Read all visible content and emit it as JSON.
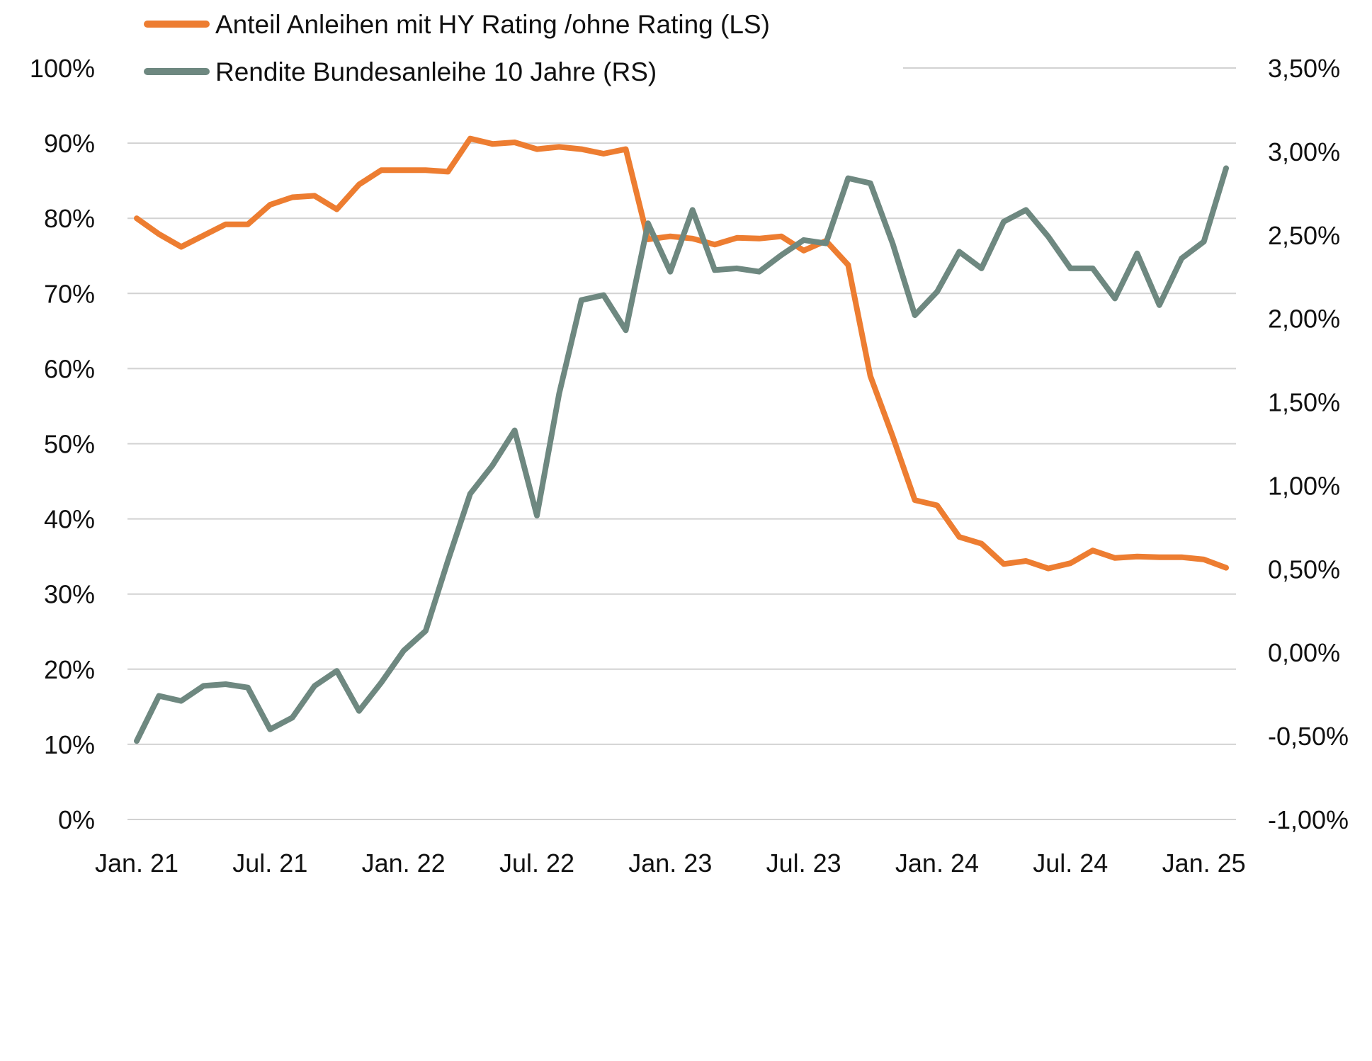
{
  "chart_data": {
    "type": "line",
    "left_axis": {
      "ylim": [
        0,
        100
      ],
      "ticks": [
        0,
        10,
        20,
        30,
        40,
        50,
        60,
        70,
        80,
        90,
        100
      ],
      "tick_labels": [
        "0%",
        "10%",
        "20%",
        "30%",
        "40%",
        "50%",
        "60%",
        "70%",
        "80%",
        "90%",
        "100%"
      ]
    },
    "right_axis": {
      "ylim": [
        -1.0,
        3.5
      ],
      "ticks": [
        -1.0,
        -0.5,
        0.0,
        0.5,
        1.0,
        1.5,
        2.0,
        2.5,
        3.0,
        3.5
      ],
      "tick_labels": [
        "-1,00%",
        "-0,50%",
        "0,00%",
        "0,50%",
        "1,00%",
        "1,50%",
        "2,00%",
        "2,50%",
        "3,00%",
        "3,50%"
      ]
    },
    "x_axis": {
      "categories": [
        "Jan. 21",
        "Feb. 21",
        "Mär. 21",
        "Apr. 21",
        "Mai 21",
        "Jun. 21",
        "Jul. 21",
        "Aug. 21",
        "Sep. 21",
        "Okt. 21",
        "Nov. 21",
        "Dez. 21",
        "Jan. 22",
        "Feb. 22",
        "Mär. 22",
        "Apr. 22",
        "Mai 22",
        "Jun. 22",
        "Jul. 22",
        "Aug. 22",
        "Sep. 22",
        "Okt. 22",
        "Nov. 22",
        "Dez. 22",
        "Jan. 23",
        "Feb. 23",
        "Mär. 23",
        "Apr. 23",
        "Mai 23",
        "Jun. 23",
        "Jul. 23",
        "Aug. 23",
        "Sep. 23",
        "Okt. 23",
        "Nov. 23",
        "Dez. 23",
        "Jan. 24",
        "Feb. 24",
        "Mär. 24",
        "Apr. 24",
        "Mai 24",
        "Jun. 24",
        "Jul. 24",
        "Aug. 24",
        "Sep. 24",
        "Okt. 24",
        "Nov. 24",
        "Dez. 24",
        "Jan. 25",
        "Feb. 25"
      ],
      "tick_labels": [
        "Jan. 21",
        "Jul. 21",
        "Jan. 22",
        "Jul. 22",
        "Jan. 23",
        "Jul. 23",
        "Jan. 24",
        "Jul. 24",
        "Jan. 25"
      ],
      "tick_categories": [
        "Jan. 21",
        "Jul. 21",
        "Jan. 22",
        "Jul. 22",
        "Jan. 23",
        "Jul. 23",
        "Jan. 24",
        "Jul. 24",
        "Jan. 25"
      ]
    },
    "series": [
      {
        "name": "Anteil Anleihen mit HY Rating /ohne Rating (LS)",
        "axis": "left",
        "color": "#ED7D31",
        "values": [
          80.0,
          77.9,
          76.2,
          77.7,
          79.2,
          79.2,
          81.8,
          82.8,
          83.0,
          81.2,
          84.5,
          86.4,
          86.4,
          86.4,
          86.2,
          90.6,
          89.9,
          90.1,
          89.2,
          89.5,
          89.2,
          88.6,
          89.2,
          77.2,
          77.6,
          77.3,
          76.5,
          77.4,
          77.3,
          77.6,
          75.7,
          77.0,
          73.8,
          59.0,
          51.0,
          42.5,
          41.8,
          37.6,
          36.7,
          34.0,
          34.4,
          33.4,
          34.1,
          35.8,
          34.8,
          35.0,
          34.9,
          34.9,
          34.6,
          33.5
        ]
      },
      {
        "name": "Rendite Bundesanleihe 10 Jahre (RS)",
        "axis": "right",
        "color": "#6E8880",
        "values": [
          -0.53,
          -0.26,
          -0.29,
          -0.2,
          -0.19,
          -0.21,
          -0.46,
          -0.39,
          -0.2,
          -0.11,
          -0.35,
          -0.18,
          0.01,
          0.13,
          0.55,
          0.95,
          1.12,
          1.33,
          0.82,
          1.55,
          2.11,
          2.14,
          1.93,
          2.57,
          2.28,
          2.65,
          2.29,
          2.3,
          2.28,
          2.38,
          2.47,
          2.45,
          2.84,
          2.81,
          2.45,
          2.02,
          2.16,
          2.4,
          2.3,
          2.58,
          2.65,
          2.49,
          2.3,
          2.3,
          2.12,
          2.39,
          2.08,
          2.36,
          2.46,
          2.9
        ]
      }
    ],
    "legend": {
      "position": "top-left",
      "entries": [
        {
          "label": "Anteil Anleihen mit HY Rating /ohne Rating (LS)",
          "color": "#ED7D31"
        },
        {
          "label": "Rendite Bundesanleihe 10 Jahre (RS)",
          "color": "#6E8880"
        }
      ]
    },
    "grid": true,
    "gridline_color": "#D2D2D2"
  }
}
